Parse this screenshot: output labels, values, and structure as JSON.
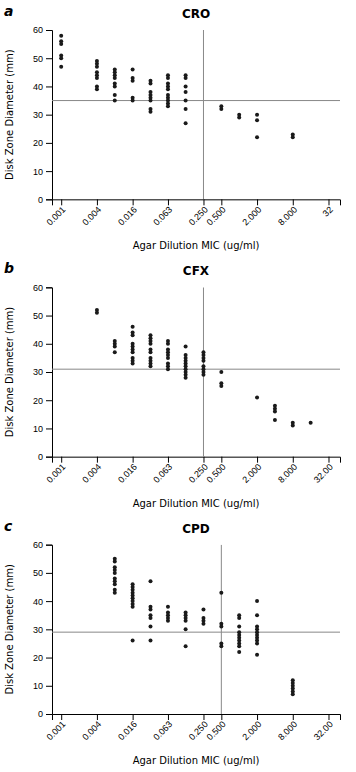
{
  "chart_data": [
    {
      "type": "scatter",
      "title": "CRO",
      "annotations": [
        "a"
      ],
      "xlabel": "Agar Dilution MIC (ug/ml)",
      "ylabel": "Disk Zone Diameter (mm)",
      "log": "x",
      "color": "#1a1a1a",
      "hline": 35,
      "vline": 0.25,
      "xlim": [
        0.0007,
        50.0
      ],
      "ylim": [
        0,
        60
      ],
      "xticks": [
        0.001,
        0.004,
        0.016,
        0.063,
        {
          "value": 0.25,
          "label": "0.250"
        },
        {
          "value": 0.5,
          "label": "0.500"
        },
        {
          "value": 2.0,
          "label": "2.000"
        },
        {
          "value": 8.0,
          "label": "8.000"
        },
        32
      ],
      "yticks": [
        0,
        10,
        20,
        30,
        40,
        50,
        60
      ],
      "x": [
        0.001,
        0.001,
        0.001,
        0.001,
        0.001,
        0.001,
        0.004,
        0.004,
        0.004,
        0.004,
        0.004,
        0.004,
        0.004,
        0.004,
        0.008,
        0.008,
        0.008,
        0.008,
        0.008,
        0.008,
        0.008,
        0.008,
        0.016,
        0.016,
        0.016,
        0.016,
        0.016,
        0.032,
        0.032,
        0.032,
        0.032,
        0.032,
        0.032,
        0.032,
        0.032,
        0.063,
        0.063,
        0.063,
        0.063,
        0.063,
        0.063,
        0.063,
        0.063,
        0.063,
        0.063,
        0.125,
        0.125,
        0.125,
        0.125,
        0.125,
        0.125,
        0.125,
        0.5,
        0.5,
        1.0,
        1.0,
        2.0,
        2.0,
        2.0,
        8.0,
        8.0
      ],
      "values": [
        58,
        56,
        55,
        51,
        50,
        47,
        49,
        48,
        47,
        45,
        44,
        43,
        40,
        39,
        46,
        45,
        44,
        43,
        41,
        40,
        37,
        35,
        46,
        43,
        42,
        36,
        35,
        42,
        41,
        38,
        37,
        36,
        35,
        32,
        31,
        44,
        43,
        41,
        40,
        39,
        37,
        36,
        35,
        34,
        33,
        44,
        43,
        40,
        38,
        35,
        32,
        27,
        33,
        32,
        30,
        29,
        30,
        28,
        22,
        23,
        22
      ]
    },
    {
      "type": "scatter",
      "title": "CFX",
      "annotations": [
        "b"
      ],
      "xlabel": "Agar Dilution MIC (ug/ml)",
      "ylabel": "Disk Zone Diameter (mm)",
      "log": "x",
      "color": "#1a1a1a",
      "hline": 31,
      "vline": 0.25,
      "xlim": [
        0.0007,
        50.0
      ],
      "ylim": [
        0,
        60
      ],
      "xticks": [
        0.001,
        0.004,
        0.016,
        0.063,
        {
          "value": 0.25,
          "label": "0.250"
        },
        {
          "value": 0.5,
          "label": "0.500"
        },
        {
          "value": 2.0,
          "label": "2.000"
        },
        {
          "value": 8.0,
          "label": "8.000"
        },
        {
          "value": 32.0,
          "label": "32.00"
        }
      ],
      "yticks": [
        0,
        10,
        20,
        30,
        40,
        50,
        60
      ],
      "x": [
        0.004,
        0.004,
        0.008,
        0.008,
        0.008,
        0.008,
        0.016,
        0.016,
        0.016,
        0.016,
        0.016,
        0.016,
        0.016,
        0.016,
        0.016,
        0.016,
        0.032,
        0.032,
        0.032,
        0.032,
        0.032,
        0.032,
        0.032,
        0.032,
        0.032,
        0.032,
        0.063,
        0.063,
        0.063,
        0.063,
        0.063,
        0.063,
        0.063,
        0.063,
        0.063,
        0.125,
        0.125,
        0.125,
        0.125,
        0.125,
        0.125,
        0.125,
        0.125,
        0.125,
        0.125,
        0.25,
        0.25,
        0.25,
        0.25,
        0.25,
        0.25,
        0.25,
        0.25,
        0.5,
        0.5,
        0.5,
        2.0,
        4.0,
        4.0,
        4.0,
        4.0,
        8.0,
        8.0,
        16.0
      ],
      "values": [
        52,
        51,
        41,
        40,
        39,
        37,
        46,
        44,
        43,
        40,
        39,
        38,
        37,
        35,
        34,
        33,
        43,
        42,
        41,
        40,
        38,
        37,
        35,
        34,
        33,
        32,
        41,
        40,
        38,
        37,
        36,
        35,
        33,
        32,
        31,
        39,
        36,
        35,
        34,
        33,
        32,
        31,
        30,
        29,
        28,
        37,
        36,
        35,
        34,
        32,
        31,
        30,
        29,
        30,
        26,
        25,
        21,
        18,
        17,
        16,
        13,
        12,
        11,
        12
      ]
    },
    {
      "type": "scatter",
      "title": "CPD",
      "annotations": [
        "c"
      ],
      "xlabel": "Agar Dilution MIC (ug/ml)",
      "ylabel": "Disk Zone Diameter (mm)",
      "log": "x",
      "color": "#1a1a1a",
      "hline": 29,
      "vline": 0.5,
      "xlim": [
        0.0007,
        50.0
      ],
      "ylim": [
        0,
        60
      ],
      "xticks": [
        0.001,
        0.004,
        0.016,
        0.063,
        {
          "value": 0.25,
          "label": "0.250"
        },
        {
          "value": 0.5,
          "label": "0.500"
        },
        {
          "value": 2.0,
          "label": "2.000"
        },
        {
          "value": 8.0,
          "label": "8.000"
        },
        {
          "value": 32.0,
          "label": "32.00"
        }
      ],
      "yticks": [
        0,
        10,
        20,
        30,
        40,
        50,
        60
      ],
      "x": [
        0.008,
        0.008,
        0.008,
        0.008,
        0.008,
        0.008,
        0.008,
        0.008,
        0.008,
        0.008,
        0.016,
        0.016,
        0.016,
        0.016,
        0.016,
        0.016,
        0.016,
        0.016,
        0.016,
        0.016,
        0.032,
        0.032,
        0.032,
        0.032,
        0.032,
        0.032,
        0.032,
        0.063,
        0.063,
        0.063,
        0.063,
        0.063,
        0.125,
        0.125,
        0.125,
        0.125,
        0.125,
        0.125,
        0.25,
        0.25,
        0.25,
        0.25,
        0.5,
        0.5,
        0.5,
        0.5,
        0.5,
        1.0,
        1.0,
        1.0,
        1.0,
        1.0,
        1.0,
        1.0,
        1.0,
        1.0,
        1.0,
        2.0,
        2.0,
        2.0,
        2.0,
        2.0,
        2.0,
        2.0,
        2.0,
        2.0,
        2.0,
        8.0,
        8.0,
        8.0,
        8.0,
        8.0,
        8.0
      ],
      "values": [
        55,
        54,
        52,
        51,
        50,
        48,
        47,
        46,
        44,
        43,
        46,
        45,
        44,
        43,
        42,
        41,
        40,
        39,
        38,
        26,
        47,
        38,
        37,
        35,
        34,
        31,
        26,
        38,
        36,
        35,
        34,
        33,
        36,
        35,
        34,
        33,
        30,
        24,
        37,
        34,
        33,
        32,
        43,
        32,
        31,
        25,
        24,
        35,
        34,
        31,
        29,
        28,
        27,
        26,
        25,
        24,
        22,
        40,
        35,
        31,
        30,
        29,
        28,
        27,
        26,
        25,
        21,
        12,
        11,
        10,
        9,
        8,
        7
      ]
    }
  ]
}
